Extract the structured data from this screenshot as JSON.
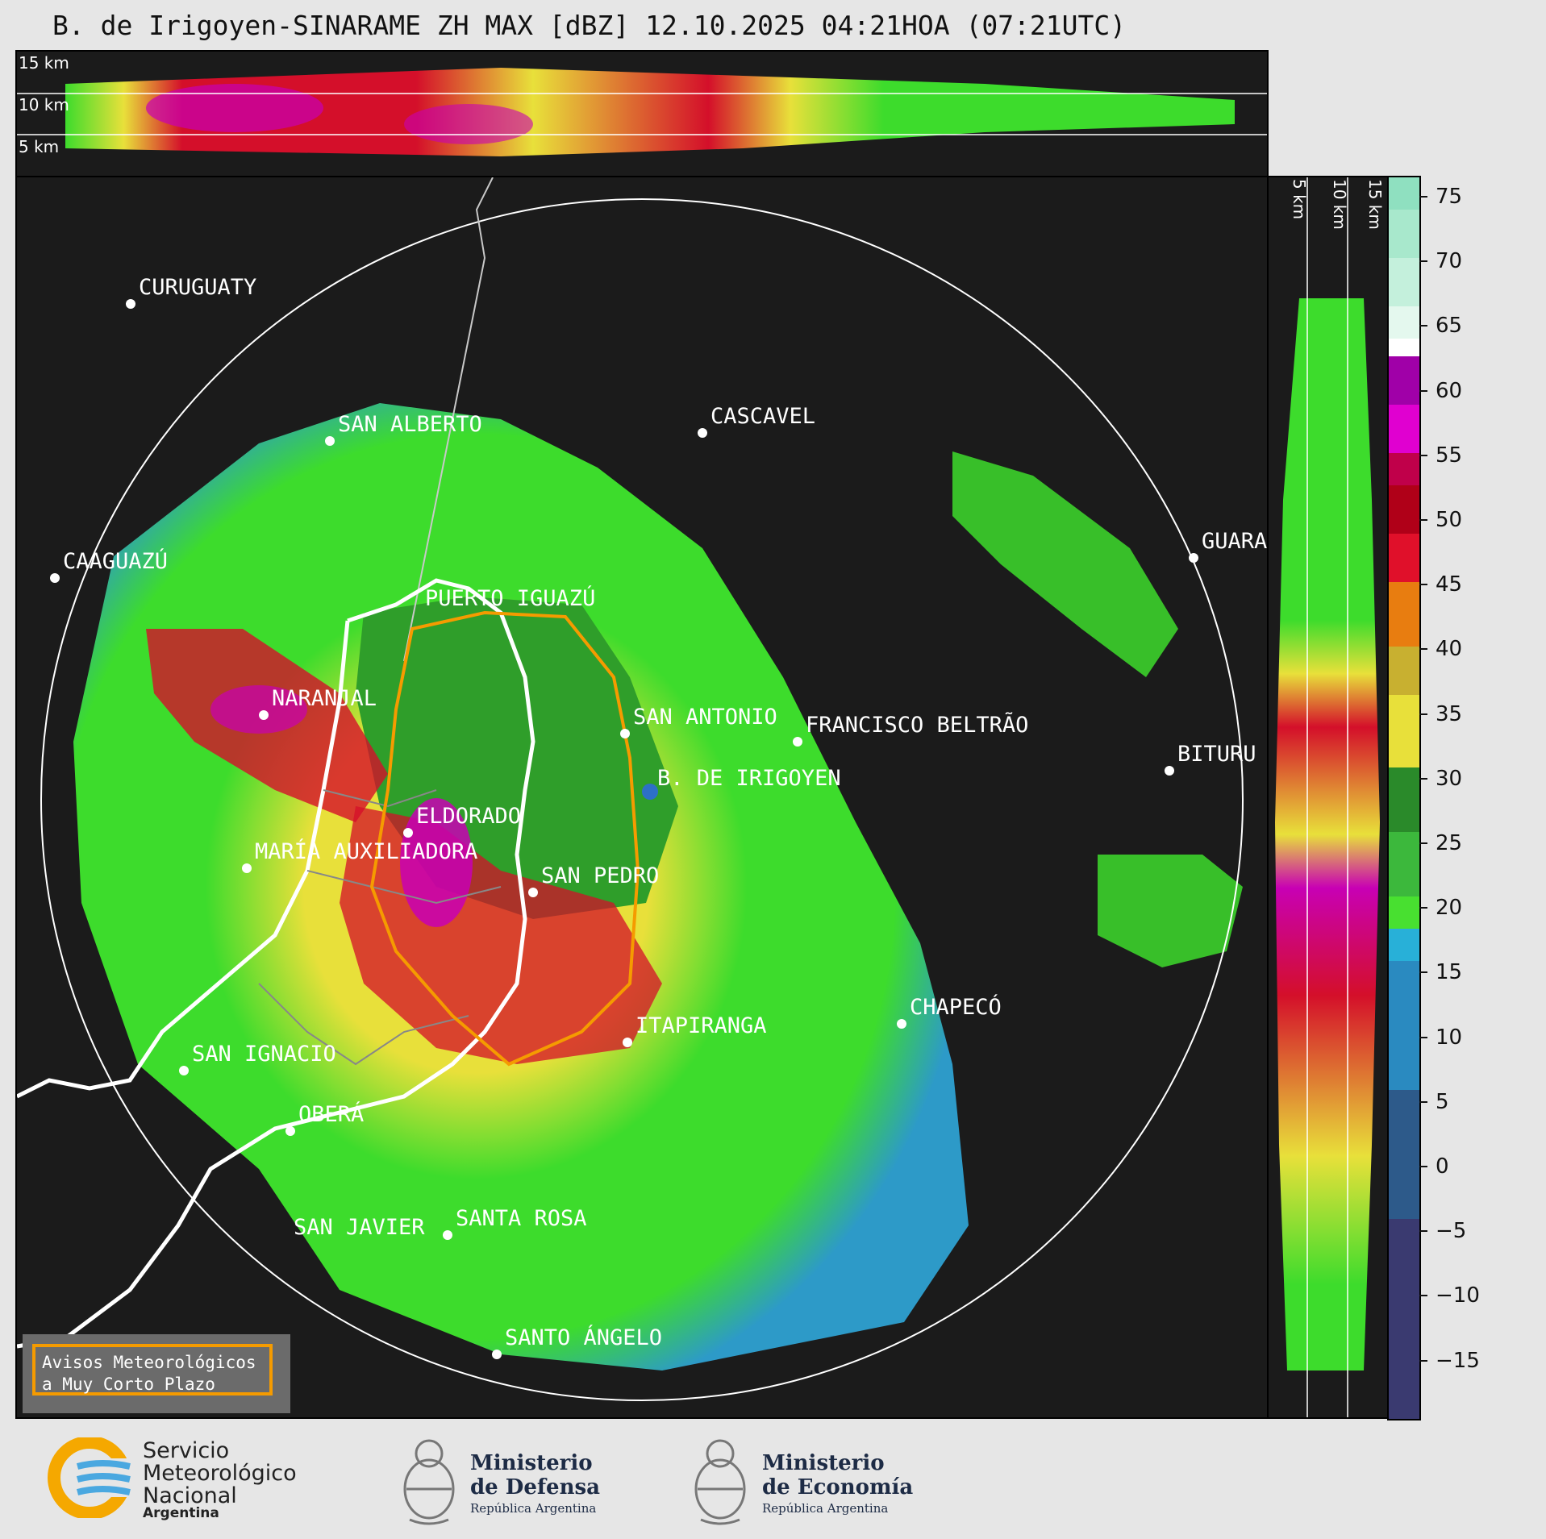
{
  "title": "B. de Irigoyen-SINARAME ZH MAX [dBZ] 12.10.2025 04:21HOA (07:21UTC)",
  "top_panel": {
    "heights": [
      "15 km",
      "10 km",
      "5 km"
    ]
  },
  "side_panel": {
    "heights": [
      "5 km",
      "10 km",
      "15 km"
    ]
  },
  "colorbar": {
    "ticks": [
      "75",
      "70",
      "65",
      "60",
      "55",
      "50",
      "45",
      "40",
      "35",
      "30",
      "25",
      "20",
      "15",
      "10",
      "5",
      "0",
      "−5",
      "−10",
      "−15"
    ]
  },
  "cities": [
    {
      "name": "CURUGUATY"
    },
    {
      "name": "SAN ALBERTO"
    },
    {
      "name": "CASCAVEL"
    },
    {
      "name": "CAAGUAZÚ"
    },
    {
      "name": "GUARA"
    },
    {
      "name": "PUERTO IGUAZÚ"
    },
    {
      "name": "NARANJAL"
    },
    {
      "name": "SAN ANTONIO"
    },
    {
      "name": "FRANCISCO BELTRÃO"
    },
    {
      "name": "BITURU"
    },
    {
      "name": "B. DE IRIGOYEN"
    },
    {
      "name": "ELDORADO"
    },
    {
      "name": "MARÍA AUXILIADORA"
    },
    {
      "name": "SAN PEDRO"
    },
    {
      "name": "CHAPECÓ"
    },
    {
      "name": "ITAPIRANGA"
    },
    {
      "name": "SAN IGNACIO"
    },
    {
      "name": "OBERÁ"
    },
    {
      "name": "SAN JAVIER"
    },
    {
      "name": "SANTA ROSA"
    },
    {
      "name": "SANTO ÁNGELO"
    }
  ],
  "legend": {
    "line1": "Avisos Meteorológicos",
    "line2": "a Muy Corto Plazo"
  },
  "logos": {
    "smn": {
      "line1": "Servicio",
      "line2": "Meteorológico",
      "line3": "Nacional",
      "line4": "Argentina"
    },
    "defensa": {
      "line1": "Ministerio",
      "line2": "de Defensa",
      "line3": "República Argentina"
    },
    "economia": {
      "line1": "Ministerio",
      "line2": "de Economía",
      "line3": "República Argentina"
    }
  },
  "colors": {
    "background": "#1b1b1b",
    "alert_polygon": "#f59b00",
    "border_line": "#ffffff",
    "yellow": "#e8e03a",
    "green": "#3ddc2c",
    "blue": "#2d9ac8",
    "red": "#d40f2a",
    "magenta": "#c800b4"
  }
}
